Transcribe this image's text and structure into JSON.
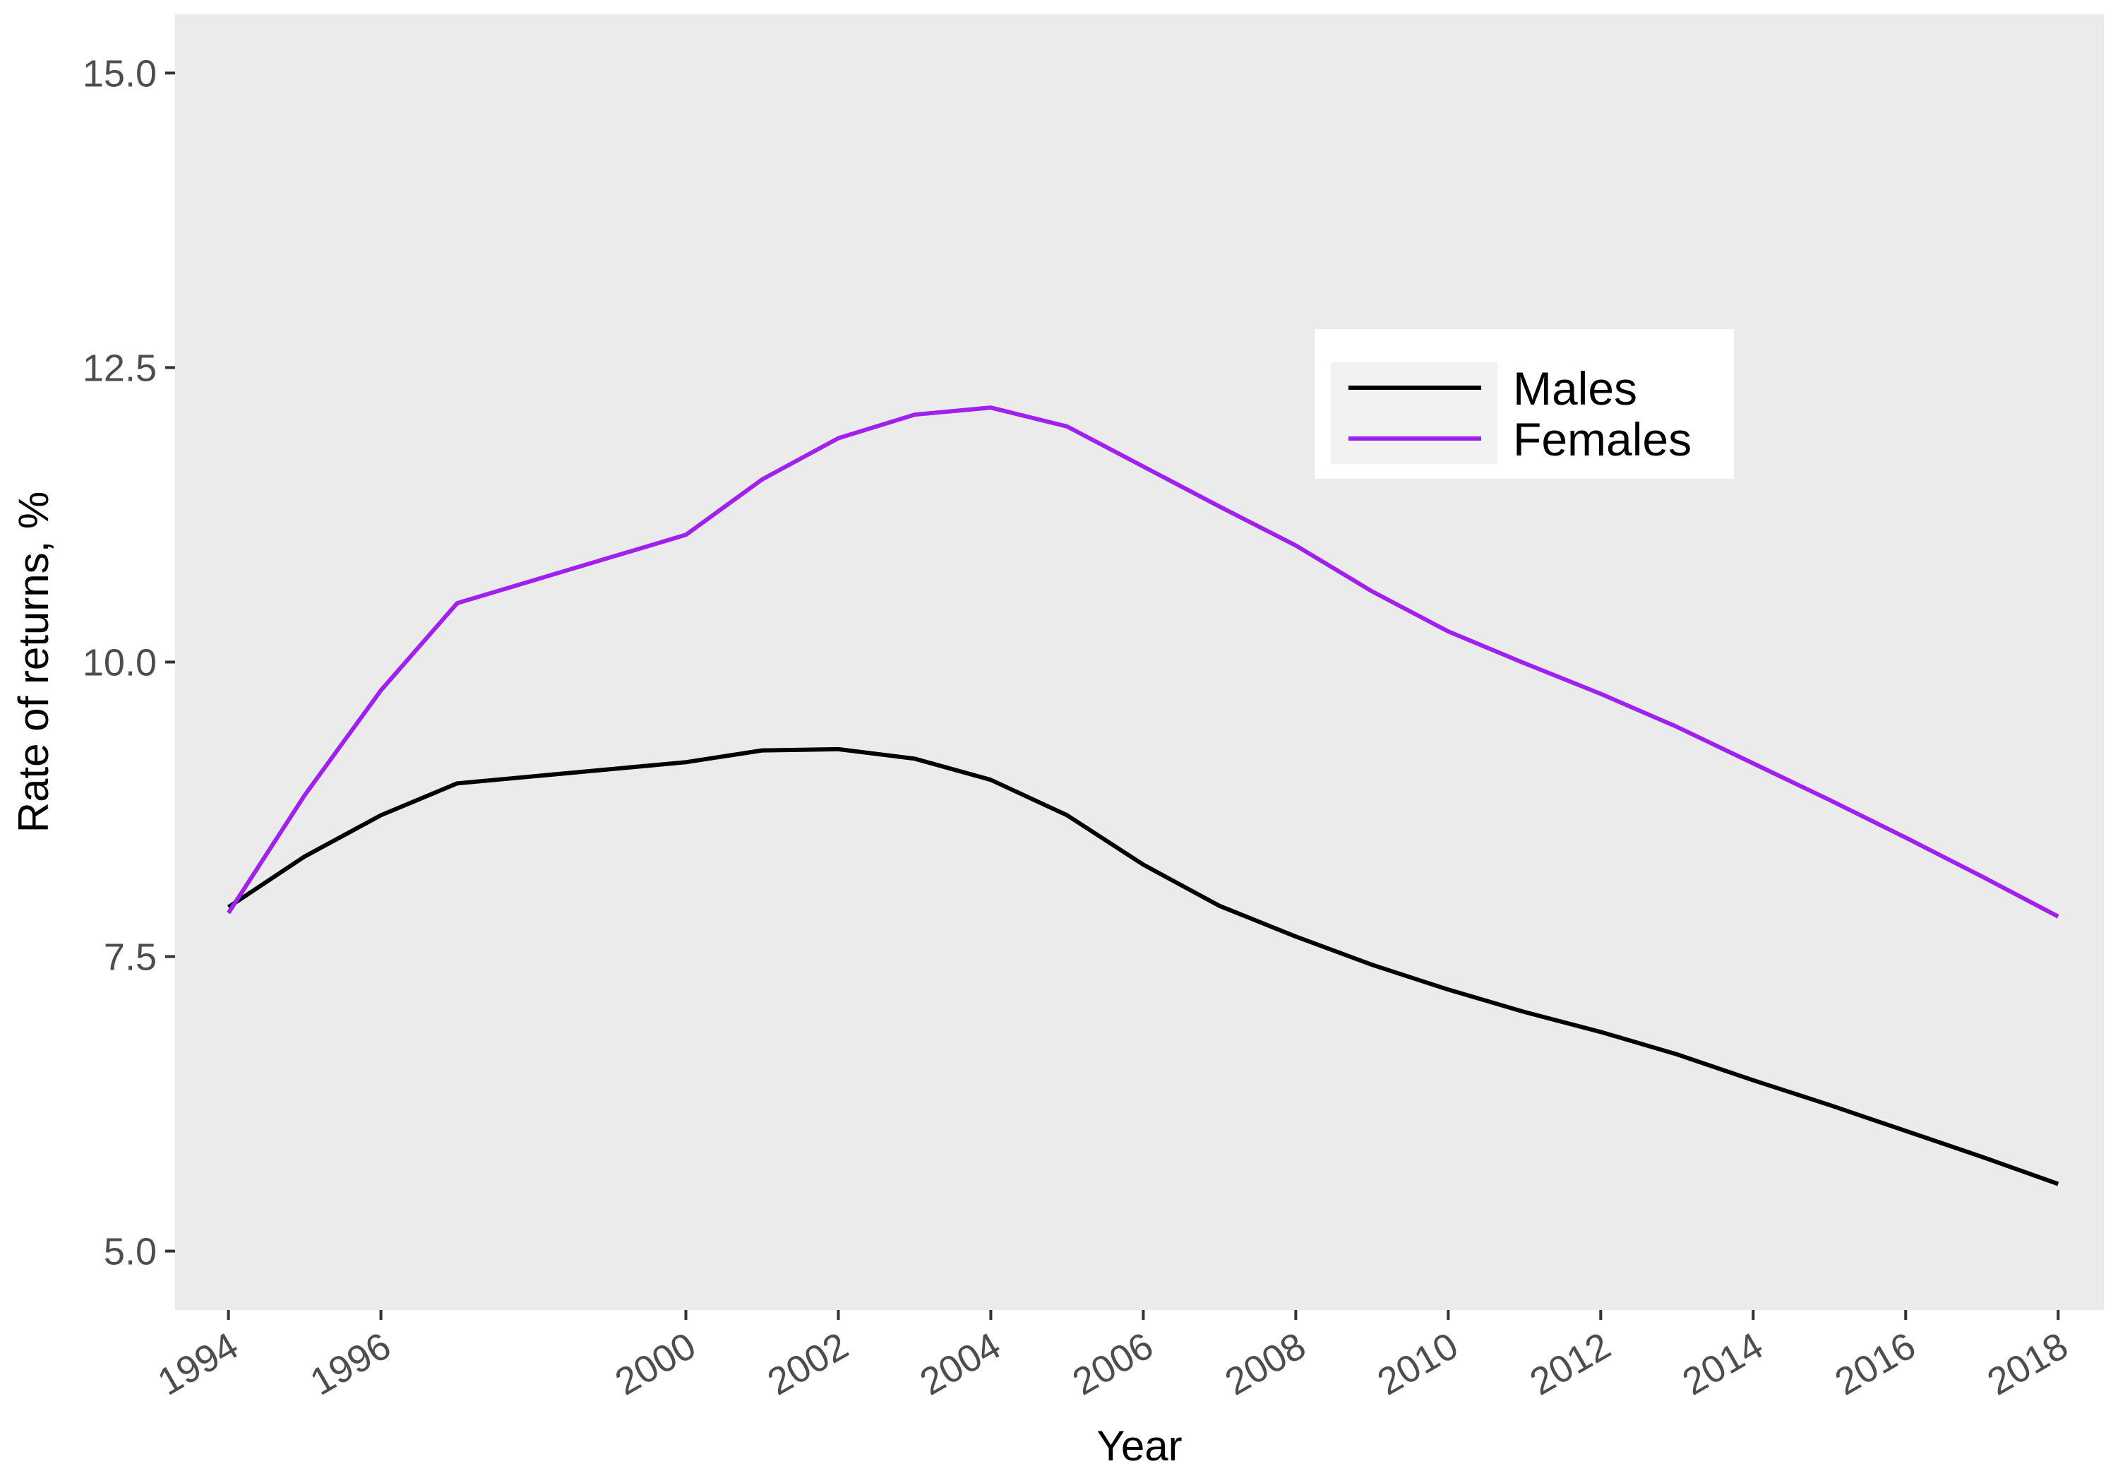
{
  "chart_data": {
    "type": "line",
    "title": "",
    "xlabel": "Year",
    "ylabel": "Rate of returns, %",
    "xlim": [
      1993.3,
      2018.6
    ],
    "ylim": [
      4.5,
      15.5
    ],
    "x_ticks": [
      1994,
      1996,
      2000,
      2002,
      2004,
      2006,
      2008,
      2010,
      2012,
      2014,
      2016,
      2018
    ],
    "x_tick_labels": [
      "1994",
      "1996",
      "2000",
      "2002",
      "2004",
      "2006",
      "2008",
      "2010",
      "2012",
      "2014",
      "2016",
      "2018"
    ],
    "y_ticks": [
      5.0,
      7.5,
      10.0,
      12.5,
      15.0
    ],
    "y_tick_labels": [
      "5.0",
      "7.5",
      "10.0",
      "12.5",
      "15.0"
    ],
    "grid": false,
    "legend": "right, upper-middle",
    "background": "#ebebeb",
    "x": [
      1994,
      1995,
      1996,
      1997,
      2000,
      2001,
      2002,
      2003,
      2004,
      2005,
      2006,
      2007,
      2008,
      2009,
      2010,
      2011,
      2012,
      2013,
      2014,
      2015,
      2016,
      2017,
      2018
    ],
    "series": [
      {
        "name": "Males",
        "color": "#000000",
        "values": [
          7.92,
          8.35,
          8.7,
          8.97,
          9.15,
          9.25,
          9.26,
          9.18,
          9.0,
          8.7,
          8.28,
          7.93,
          7.67,
          7.43,
          7.22,
          7.03,
          6.86,
          6.67,
          6.45,
          6.24,
          6.02,
          5.8,
          5.57
        ]
      },
      {
        "name": "Females",
        "color": "#a020f0",
        "values": [
          7.87,
          8.87,
          9.76,
          10.5,
          11.08,
          11.55,
          11.9,
          12.1,
          12.16,
          12.0,
          11.66,
          11.32,
          10.99,
          10.6,
          10.26,
          9.99,
          9.73,
          9.45,
          9.14,
          8.83,
          8.51,
          8.18,
          7.84
        ]
      }
    ]
  }
}
